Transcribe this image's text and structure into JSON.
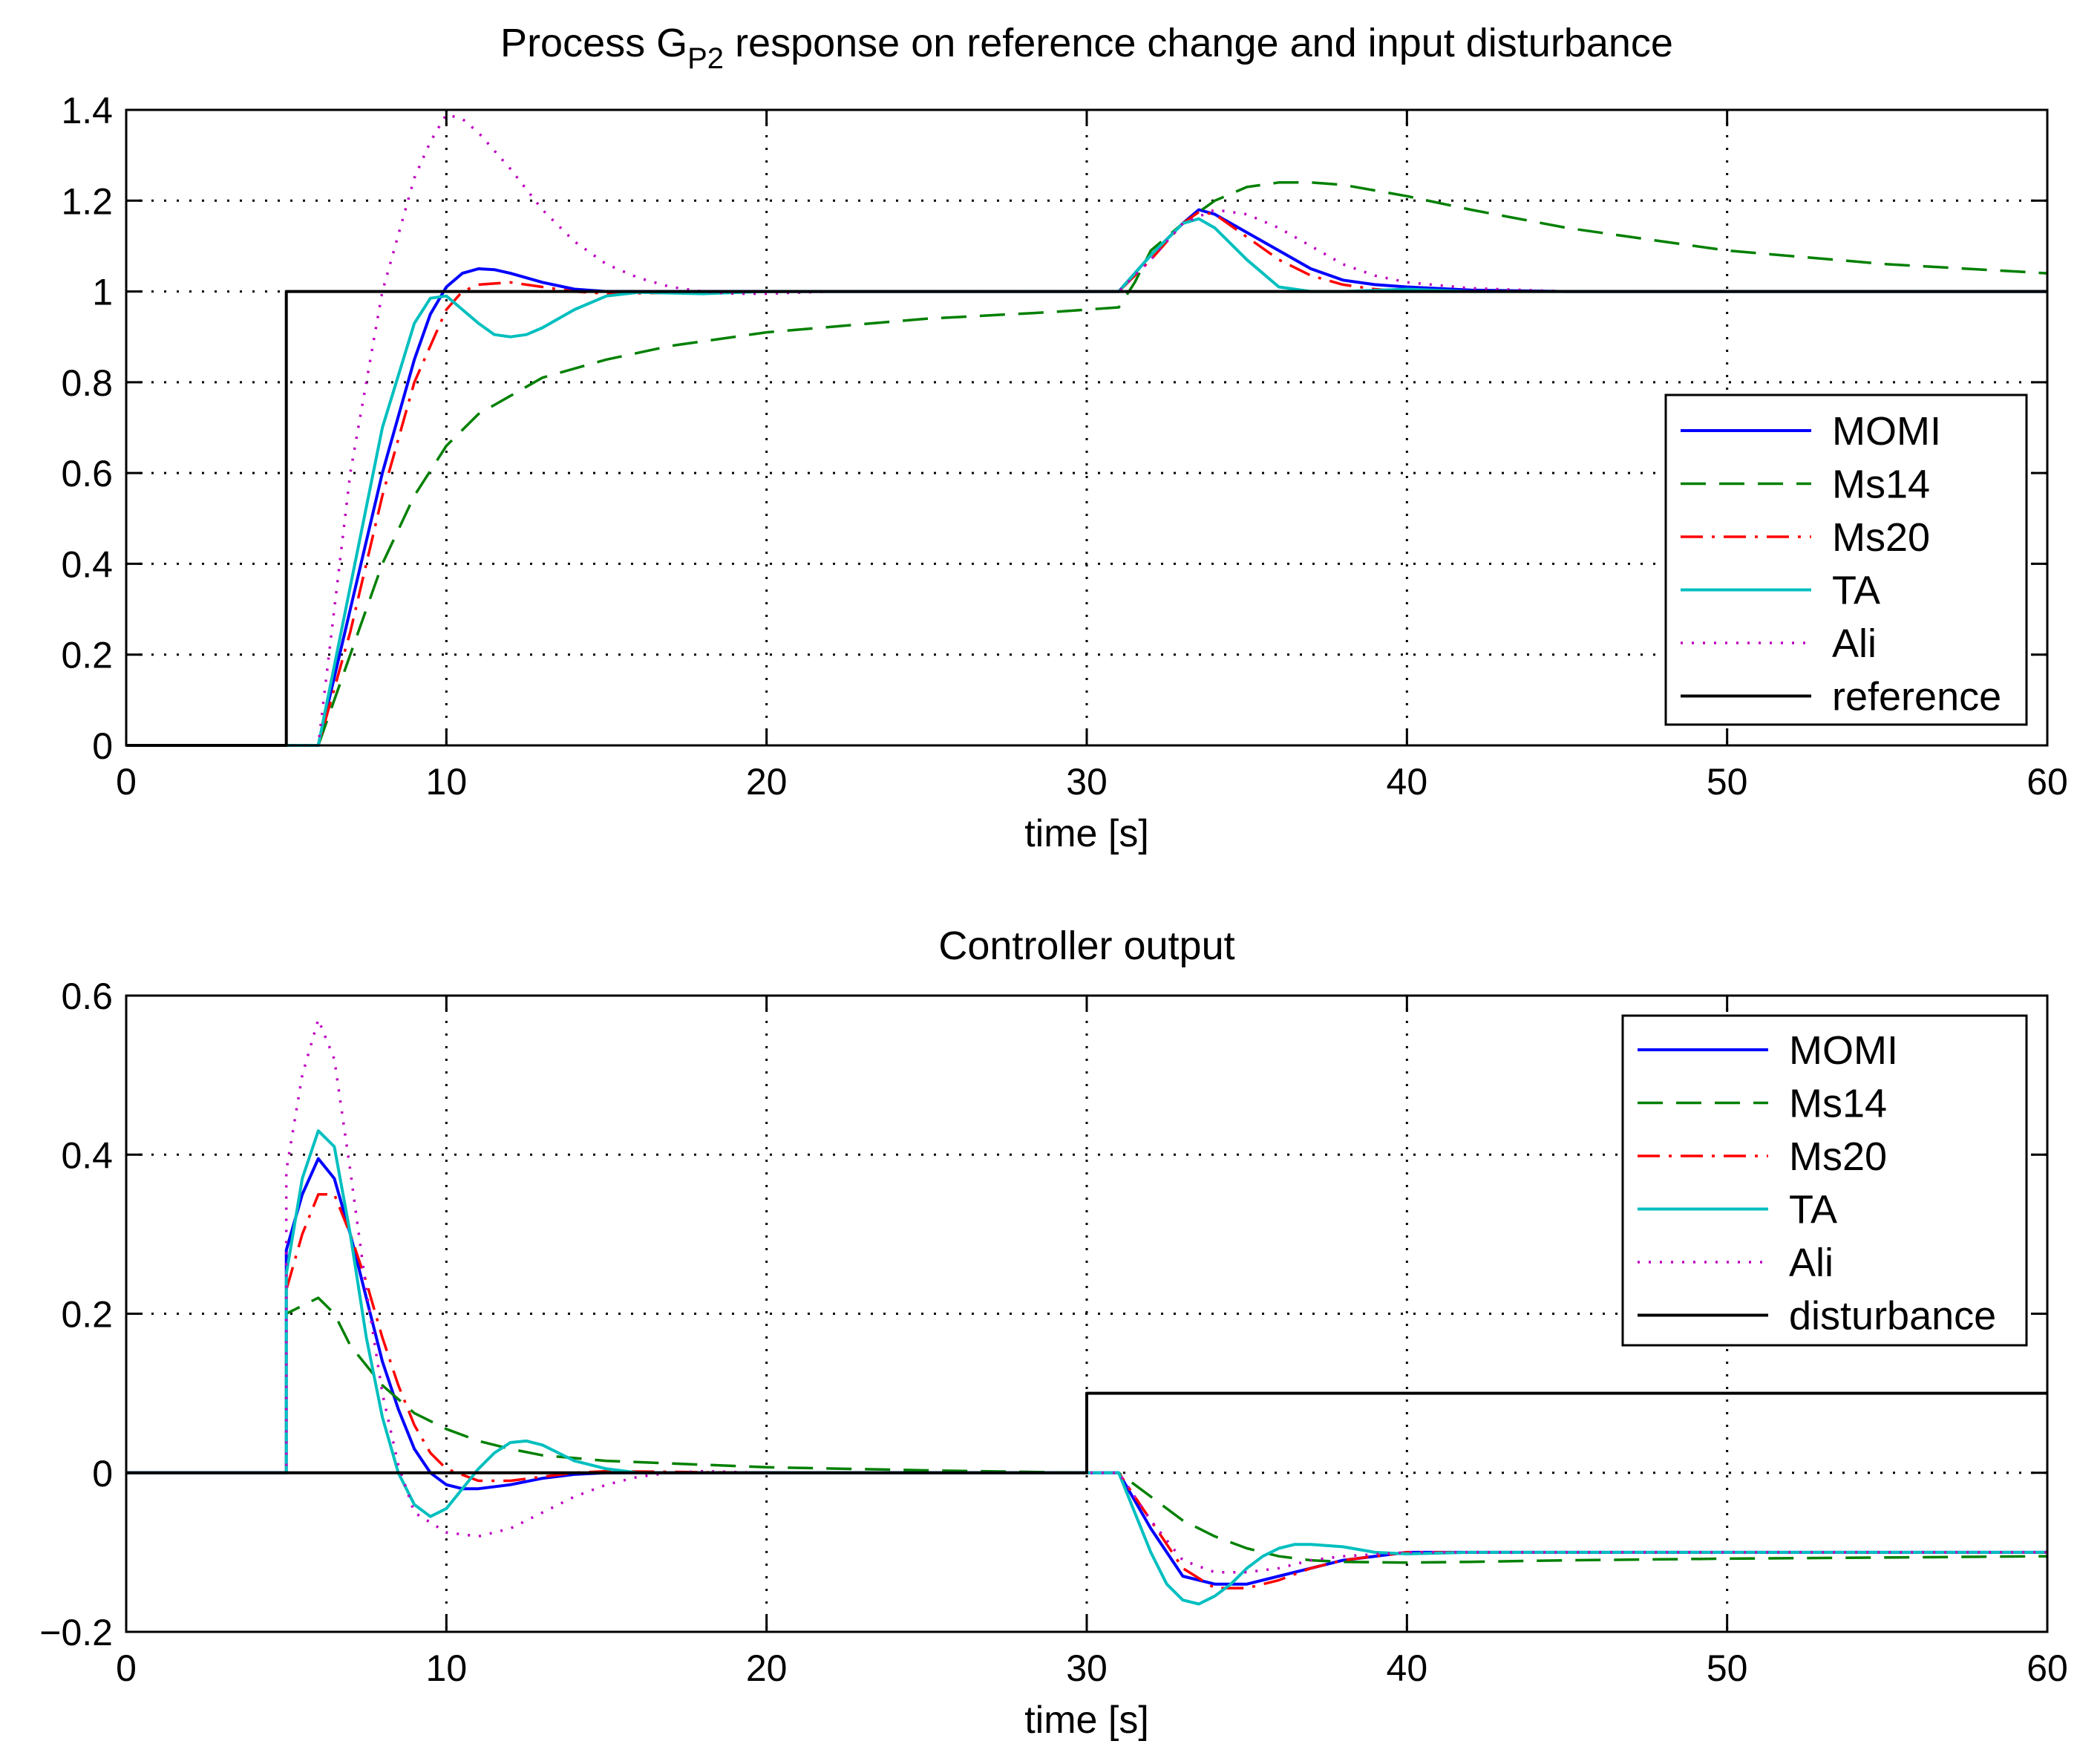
{
  "colors": {
    "MOMI": "#0000ff",
    "Ms14": "#008000",
    "Ms20": "#ff0000",
    "TA": "#00bfbf",
    "Ali": "#bf00bf",
    "reference": "#000000",
    "disturbance": "#000000"
  },
  "chart_data": [
    {
      "id": "top",
      "type": "line",
      "title_main": "Process G",
      "title_sub": "P2",
      "title_rest": " response on reference change and input disturbance",
      "xlabel": "time [s]",
      "ylabel": "",
      "xlim": [
        0,
        60
      ],
      "ylim": [
        0,
        1.4
      ],
      "xticks": [
        0,
        10,
        20,
        30,
        40,
        50,
        60
      ],
      "xtick_labels": [
        "0",
        "10",
        "20",
        "30",
        "40",
        "50",
        "60"
      ],
      "yticks": [
        0,
        0.2,
        0.4,
        0.6,
        0.8,
        1,
        1.2,
        1.4
      ],
      "ytick_labels": [
        "0",
        "0.2",
        "0.4",
        "0.6",
        "0.8",
        "1",
        "1.2",
        "1.4"
      ],
      "grid": true,
      "legend_position": "right-middle",
      "series": [
        {
          "name": "MOMI",
          "label": "MOMI",
          "style": "solid",
          "x": [
            0,
            6,
            7,
            8,
            9,
            9.5,
            10,
            10.5,
            11,
            11.5,
            12,
            13,
            14,
            15,
            20,
            30,
            31,
            32,
            33,
            33.5,
            34,
            35,
            36,
            37,
            38,
            39,
            40,
            42,
            45,
            50,
            60
          ],
          "y": [
            0,
            0,
            0.3,
            0.6,
            0.85,
            0.95,
            1.01,
            1.04,
            1.05,
            1.048,
            1.04,
            1.02,
            1.005,
            1.0,
            1.0,
            1.0,
            1.0,
            1.08,
            1.15,
            1.18,
            1.17,
            1.13,
            1.09,
            1.05,
            1.025,
            1.015,
            1.01,
            1.003,
            1.0,
            1.0,
            1.0
          ]
        },
        {
          "name": "Ms14",
          "label": "Ms14",
          "style": "dashed",
          "x": [
            0,
            6,
            7,
            8,
            9,
            10,
            11,
            12,
            13,
            15,
            17,
            20,
            25,
            29,
            30,
            31,
            31.5,
            32,
            33,
            34,
            35,
            36,
            37,
            38,
            40,
            42,
            45,
            50,
            55,
            60
          ],
          "y": [
            0,
            0,
            0.2,
            0.4,
            0.55,
            0.66,
            0.73,
            0.77,
            0.81,
            0.85,
            0.88,
            0.91,
            0.94,
            0.955,
            0.96,
            0.965,
            1.02,
            1.09,
            1.15,
            1.2,
            1.23,
            1.24,
            1.24,
            1.235,
            1.21,
            1.18,
            1.14,
            1.09,
            1.06,
            1.04
          ]
        },
        {
          "name": "Ms20",
          "label": "Ms20",
          "style": "dashdot",
          "x": [
            0,
            6,
            7,
            8,
            9,
            10,
            10.5,
            11,
            12,
            13,
            14,
            15,
            20,
            30,
            31,
            32,
            33,
            33.5,
            34,
            35,
            36,
            37,
            38,
            39,
            40,
            42,
            45,
            60
          ],
          "y": [
            0,
            0,
            0.25,
            0.55,
            0.8,
            0.96,
            1.0,
            1.015,
            1.02,
            1.01,
            1.0,
            0.995,
            1.0,
            1.0,
            1.0,
            1.07,
            1.15,
            1.175,
            1.17,
            1.12,
            1.07,
            1.035,
            1.015,
            1.005,
            1.0,
            1.0,
            1.0,
            1.0
          ]
        },
        {
          "name": "TA",
          "label": "TA",
          "style": "solid",
          "x": [
            0,
            6,
            7,
            8,
            9,
            9.5,
            10,
            10.5,
            11,
            11.5,
            12,
            12.5,
            13,
            14,
            15,
            16,
            18,
            20,
            30,
            31,
            32,
            33,
            33.5,
            34,
            35,
            36,
            37,
            38,
            40,
            42,
            45,
            60
          ],
          "y": [
            0,
            0,
            0.35,
            0.7,
            0.93,
            0.985,
            0.99,
            0.96,
            0.93,
            0.905,
            0.9,
            0.905,
            0.92,
            0.96,
            0.99,
            0.998,
            0.995,
            1.0,
            1.0,
            1.0,
            1.08,
            1.15,
            1.16,
            1.14,
            1.07,
            1.01,
            1.0,
            1.0,
            1.005,
            1.0,
            1.0,
            1.0
          ]
        },
        {
          "name": "Ali",
          "label": "Ali",
          "style": "dotted",
          "x": [
            0,
            6,
            7,
            8,
            9,
            9.5,
            10,
            10.5,
            11,
            12,
            13,
            14,
            15,
            16,
            17,
            18,
            19,
            20,
            22,
            30,
            31,
            32,
            33,
            34,
            35,
            36,
            37,
            38,
            39,
            40,
            42,
            45,
            50,
            60
          ],
          "y": [
            0,
            0,
            0.6,
            1.0,
            1.25,
            1.33,
            1.39,
            1.38,
            1.35,
            1.27,
            1.18,
            1.11,
            1.06,
            1.03,
            1.01,
            1.0,
            0.995,
            0.995,
            1.0,
            1.0,
            1.0,
            1.07,
            1.15,
            1.18,
            1.17,
            1.14,
            1.1,
            1.06,
            1.035,
            1.02,
            1.007,
            1.0,
            1.0,
            1.0
          ]
        },
        {
          "name": "reference",
          "label": "reference",
          "style": "solid",
          "x": [
            0,
            5,
            5,
            60
          ],
          "y": [
            0,
            0,
            1,
            1
          ]
        }
      ]
    },
    {
      "id": "bottom",
      "type": "line",
      "title": "Controller output",
      "xlabel": "time [s]",
      "ylabel": "",
      "xlim": [
        0,
        60
      ],
      "ylim": [
        -0.2,
        0.6
      ],
      "xticks": [
        0,
        10,
        20,
        30,
        40,
        50,
        60
      ],
      "xtick_labels": [
        "0",
        "10",
        "20",
        "30",
        "40",
        "50",
        "60"
      ],
      "yticks": [
        -0.2,
        0,
        0.2,
        0.4,
        0.6
      ],
      "ytick_labels": [
        "−0.2",
        "0",
        "0.2",
        "0.4",
        "0.6"
      ],
      "grid": true,
      "legend_position": "top-right",
      "series": [
        {
          "name": "MOMI",
          "label": "MOMI",
          "style": "solid",
          "x": [
            0,
            5,
            5,
            5.5,
            6,
            6.5,
            7,
            7.5,
            8,
            8.5,
            9,
            9.5,
            10,
            10.5,
            11,
            12,
            13,
            14,
            15,
            20,
            30,
            31,
            32,
            33,
            34,
            35,
            36,
            37,
            38,
            40,
            42,
            45,
            50,
            60
          ],
          "y": [
            0,
            0,
            0.28,
            0.35,
            0.395,
            0.37,
            0.3,
            0.22,
            0.14,
            0.08,
            0.03,
            0.0,
            -0.015,
            -0.02,
            -0.02,
            -0.015,
            -0.007,
            -0.002,
            0.0,
            0.0,
            0.0,
            0.0,
            -0.07,
            -0.13,
            -0.14,
            -0.14,
            -0.13,
            -0.12,
            -0.11,
            -0.1,
            -0.1,
            -0.1,
            -0.1,
            -0.1
          ]
        },
        {
          "name": "Ms14",
          "label": "Ms14",
          "style": "dashed",
          "x": [
            0,
            5,
            5,
            5.5,
            6,
            6.5,
            7,
            8,
            9,
            10,
            11,
            12,
            13,
            15,
            20,
            25,
            30,
            31,
            32,
            33,
            34,
            35,
            36,
            37,
            38,
            40,
            42,
            45,
            50,
            60
          ],
          "y": [
            0,
            0,
            0.2,
            0.21,
            0.22,
            0.2,
            0.16,
            0.11,
            0.075,
            0.055,
            0.04,
            0.03,
            0.022,
            0.015,
            0.007,
            0.003,
            0.0,
            0.0,
            -0.03,
            -0.06,
            -0.08,
            -0.095,
            -0.105,
            -0.11,
            -0.112,
            -0.113,
            -0.112,
            -0.11,
            -0.108,
            -0.105
          ]
        },
        {
          "name": "Ms20",
          "label": "Ms20",
          "style": "dashdot",
          "x": [
            0,
            5,
            5,
            5.5,
            6,
            6.5,
            7,
            7.5,
            8,
            8.5,
            9,
            9.5,
            10,
            11,
            12,
            13,
            14,
            15,
            20,
            30,
            31,
            32,
            33,
            34,
            35,
            36,
            37,
            38,
            39,
            40,
            42,
            45,
            60
          ],
          "y": [
            0,
            0,
            0.23,
            0.3,
            0.35,
            0.35,
            0.3,
            0.24,
            0.17,
            0.11,
            0.06,
            0.025,
            0.005,
            -0.01,
            -0.01,
            -0.005,
            0.0,
            0.002,
            0.0,
            0.0,
            0.0,
            -0.06,
            -0.12,
            -0.145,
            -0.145,
            -0.135,
            -0.12,
            -0.11,
            -0.105,
            -0.1,
            -0.1,
            -0.1,
            -0.1
          ]
        },
        {
          "name": "TA",
          "label": "TA",
          "style": "solid",
          "x": [
            0,
            5,
            5,
            5.5,
            6,
            6.5,
            7,
            7.5,
            8,
            8.5,
            9,
            9.5,
            10,
            10.5,
            11,
            11.5,
            12,
            12.5,
            13,
            13.5,
            14,
            15,
            16,
            20,
            30,
            31,
            32,
            32.5,
            33,
            33.5,
            34,
            34.5,
            35,
            35.5,
            36,
            36.5,
            37,
            38,
            39,
            40,
            42,
            45,
            60
          ],
          "y": [
            0,
            0,
            0.25,
            0.37,
            0.43,
            0.41,
            0.3,
            0.17,
            0.07,
            0.0,
            -0.04,
            -0.055,
            -0.045,
            -0.02,
            0.005,
            0.025,
            0.038,
            0.04,
            0.035,
            0.025,
            0.015,
            0.005,
            0.0,
            0.0,
            0.0,
            0.0,
            -0.1,
            -0.14,
            -0.16,
            -0.165,
            -0.155,
            -0.14,
            -0.12,
            -0.105,
            -0.095,
            -0.09,
            -0.09,
            -0.093,
            -0.1,
            -0.102,
            -0.1,
            -0.1,
            -0.1
          ]
        },
        {
          "name": "Ali",
          "label": "Ali",
          "style": "dotted",
          "x": [
            0,
            5,
            5,
            5.5,
            6,
            6.5,
            7,
            7.5,
            8,
            8.5,
            9,
            10,
            11,
            12,
            13,
            14,
            15,
            16,
            17,
            18,
            20,
            30,
            31,
            32,
            33,
            34,
            35,
            36,
            37,
            38,
            40,
            42,
            45,
            60
          ],
          "y": [
            0,
            0,
            0.38,
            0.5,
            0.57,
            0.52,
            0.38,
            0.23,
            0.1,
            0.01,
            -0.05,
            -0.075,
            -0.08,
            -0.07,
            -0.05,
            -0.03,
            -0.015,
            -0.005,
            0.0,
            0.002,
            0.0,
            0.0,
            0.0,
            -0.06,
            -0.11,
            -0.125,
            -0.125,
            -0.12,
            -0.11,
            -0.105,
            -0.1,
            -0.1,
            -0.1,
            -0.1
          ]
        },
        {
          "name": "disturbance",
          "label": "disturbance",
          "style": "solid",
          "x": [
            0,
            30,
            30,
            60
          ],
          "y": [
            0,
            0,
            0.1,
            0.1
          ]
        }
      ]
    }
  ]
}
